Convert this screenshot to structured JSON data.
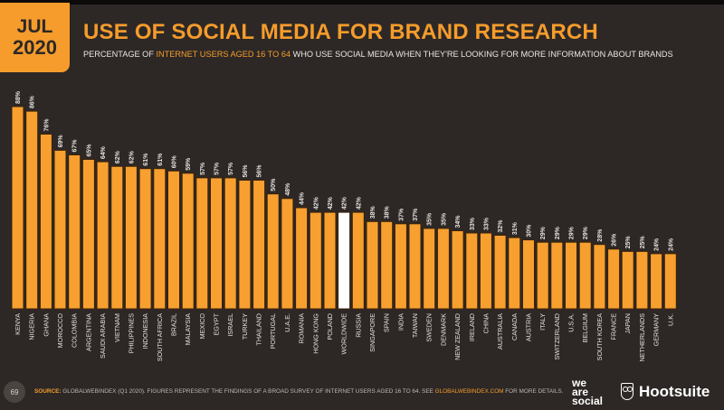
{
  "header": {
    "month": "JUL",
    "year": "2020",
    "title": "USE OF SOCIAL MEDIA FOR BRAND RESEARCH",
    "subtitle_pre": "PERCENTAGE OF ",
    "subtitle_highlight": "INTERNET USERS AGED 16 TO 64",
    "subtitle_post": " WHO USE SOCIAL MEDIA WHEN THEY'RE LOOKING FOR MORE INFORMATION ABOUT BRANDS"
  },
  "colors": {
    "background": "#2d2826",
    "accent": "#f59c2c",
    "bar": "#f7a030",
    "highlight_bar": "#ffffff",
    "bar_outline": "#3b2208"
  },
  "chart_data": {
    "type": "bar",
    "title": "USE OF SOCIAL MEDIA FOR BRAND RESEARCH",
    "xlabel": "",
    "ylabel": "",
    "ylim": [
      0,
      100
    ],
    "value_suffix": "%",
    "grid": false,
    "highlight": "WORLDWIDE",
    "categories": [
      "KENYA",
      "NIGERIA",
      "GHANA",
      "MOROCCO",
      "COLOMBIA",
      "ARGENTINA",
      "SAUDI ARABIA",
      "VIETNAM",
      "PHILIPPINES",
      "INDONESIA",
      "SOUTH AFRICA",
      "BRAZIL",
      "MALAYSIA",
      "MEXICO",
      "EGYPT",
      "ISRAEL",
      "TURKEY",
      "THAILAND",
      "PORTUGAL",
      "U.A.E.",
      "ROMANIA",
      "HONG KONG",
      "POLAND",
      "WORLDWIDE",
      "RUSSIA",
      "SINGAPORE",
      "SPAIN",
      "INDIA",
      "TAIWAN",
      "SWEDEN",
      "DENMARK",
      "NEW ZEALAND",
      "IRELAND",
      "CHINA",
      "AUSTRALIA",
      "CANADA",
      "AUSTRIA",
      "ITALY",
      "SWITZERLAND",
      "U.S.A.",
      "BELGIUM",
      "SOUTH KOREA",
      "FRANCE",
      "JAPAN",
      "NETHERLANDS",
      "GERMANY",
      "U.K."
    ],
    "values": [
      88,
      86,
      76,
      69,
      67,
      65,
      64,
      62,
      62,
      61,
      61,
      60,
      59,
      57,
      57,
      57,
      56,
      56,
      50,
      48,
      44,
      42,
      42,
      42,
      42,
      38,
      38,
      37,
      37,
      35,
      35,
      34,
      33,
      33,
      32,
      31,
      30,
      29,
      29,
      29,
      29,
      28,
      26,
      25,
      25,
      24,
      24
    ]
  },
  "footer": {
    "page_number": "69",
    "source_label": "SOURCE:",
    "source_text_1": " GLOBALWEBINDEX (Q1 2020). FIGURES REPRESENT THE FINDINGS OF A BROAD SURVEY OF INTERNET USERS AGED 16 TO 64. SEE ",
    "source_link": "GLOBALWEBINDEX.COM",
    "source_text_2": " FOR MORE DETAILS.",
    "brand_1_line1": "we",
    "brand_1_line2": "are",
    "brand_1_line3": "social",
    "brand_2": "Hootsuite"
  }
}
